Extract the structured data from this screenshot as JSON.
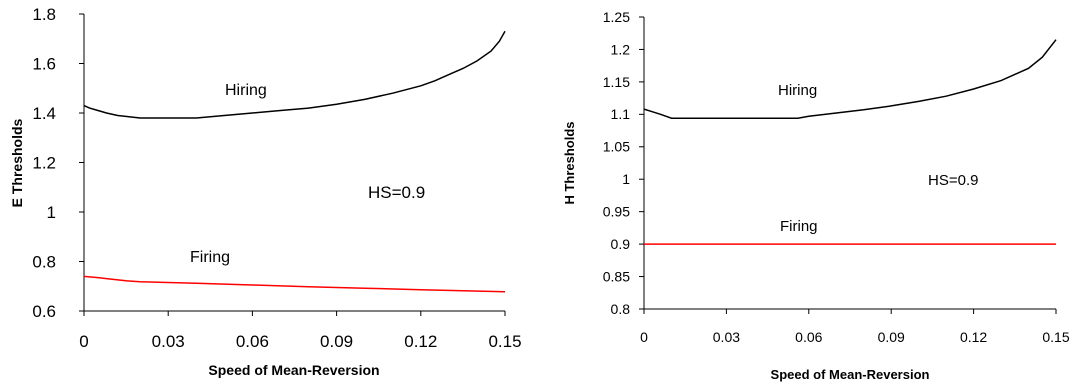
{
  "chart_data": [
    {
      "type": "line",
      "xlabel": "Speed of Mean-Reversion",
      "ylabel": "E Thresholds",
      "xlim": [
        0,
        0.15
      ],
      "ylim": [
        0.6,
        1.8
      ],
      "xticks": [
        "0",
        "0.03",
        "0.06",
        "0.09",
        "0.12",
        "0.15"
      ],
      "yticks": [
        "0.6",
        "0.8",
        "1",
        "1.2",
        "1.4",
        "1.6",
        "1.8"
      ],
      "grid": false,
      "series": [
        {
          "name": "Hiring",
          "color": "#000000",
          "x": [
            0,
            0.002,
            0.005,
            0.008,
            0.012,
            0.016,
            0.02,
            0.03,
            0.04,
            0.05,
            0.06,
            0.07,
            0.08,
            0.09,
            0.1,
            0.11,
            0.12,
            0.125,
            0.13,
            0.135,
            0.14,
            0.145,
            0.148,
            0.15
          ],
          "values": [
            1.43,
            1.42,
            1.41,
            1.4,
            1.39,
            1.385,
            1.38,
            1.38,
            1.38,
            1.39,
            1.4,
            1.41,
            1.42,
            1.435,
            1.455,
            1.48,
            1.51,
            1.53,
            1.555,
            1.58,
            1.61,
            1.65,
            1.69,
            1.73
          ]
        },
        {
          "name": "Firing",
          "color": "#ff0000",
          "x": [
            0,
            0.005,
            0.01,
            0.015,
            0.02,
            0.04,
            0.06,
            0.08,
            0.1,
            0.12,
            0.135,
            0.15
          ],
          "values": [
            0.74,
            0.735,
            0.728,
            0.722,
            0.718,
            0.712,
            0.705,
            0.698,
            0.692,
            0.686,
            0.682,
            0.678
          ]
        }
      ],
      "annotations": [
        "Hiring",
        "Firing",
        "HS=0.9"
      ]
    },
    {
      "type": "line",
      "xlabel": "Speed of Mean-Reversion",
      "ylabel": "H Thresholds",
      "xlim": [
        0,
        0.15
      ],
      "ylim": [
        0.8,
        1.25
      ],
      "xticks": [
        "0",
        "0.03",
        "0.06",
        "0.09",
        "0.12",
        "0.15"
      ],
      "yticks": [
        "0.8",
        "0.85",
        "0.9",
        "0.95",
        "1",
        "1.05",
        "1.1",
        "1.15",
        "1.2",
        "1.25"
      ],
      "grid": false,
      "series": [
        {
          "name": "Hiring",
          "color": "#000000",
          "x": [
            0,
            0.003,
            0.006,
            0.01,
            0.02,
            0.03,
            0.04,
            0.05,
            0.056,
            0.06,
            0.07,
            0.08,
            0.09,
            0.1,
            0.11,
            0.12,
            0.13,
            0.14,
            0.145,
            0.15
          ],
          "values": [
            1.108,
            1.104,
            1.1,
            1.094,
            1.094,
            1.094,
            1.094,
            1.094,
            1.094,
            1.097,
            1.102,
            1.107,
            1.113,
            1.12,
            1.128,
            1.139,
            1.152,
            1.171,
            1.188,
            1.215
          ]
        },
        {
          "name": "Firing",
          "color": "#ff0000",
          "x": [
            0,
            0.15
          ],
          "values": [
            0.9,
            0.9
          ]
        }
      ],
      "annotations": [
        "Hiring",
        "Firing",
        "HS=0.9"
      ]
    }
  ]
}
